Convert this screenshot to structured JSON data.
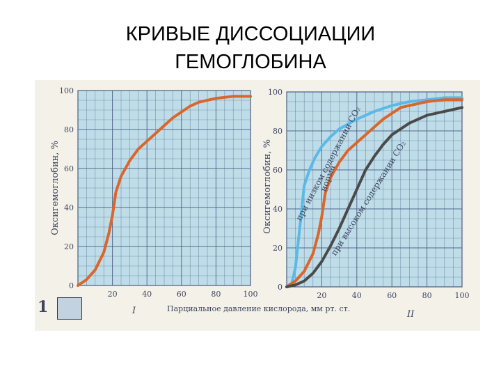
{
  "slide": {
    "title_line1": "КРИВЫЕ ДИССОЦИАЦИИ",
    "title_line2": "ГЕМОГЛОБИНА",
    "figure_number_fragment": "1"
  },
  "colors": {
    "background": "#ffffff",
    "scan_paper": "#f4f1e8",
    "grid_fill": "#bfdde9",
    "grid_line": "#4b5c80",
    "normal_curve": "#d9662b",
    "low_co2_curve": "#5ab9e6",
    "high_co2_curve": "#4a4a4a",
    "text": "#3c4560"
  },
  "chart_data": [
    {
      "type": "line",
      "panel_mark": "I",
      "ylabel": "Оксигемоглобин, %",
      "xlabel": "",
      "xlim": [
        0,
        100
      ],
      "ylim": [
        0,
        100
      ],
      "x_ticks": [
        "20",
        "40",
        "60",
        "80",
        "100"
      ],
      "y_ticks": [
        "0",
        "20",
        "40",
        "60",
        "80",
        "100"
      ],
      "grid": true,
      "series": [
        {
          "color": "#d9662b",
          "points": [
            [
              0,
              0
            ],
            [
              5,
              3
            ],
            [
              10,
              8
            ],
            [
              15,
              17
            ],
            [
              18,
              27
            ],
            [
              20,
              36
            ],
            [
              22,
              48
            ],
            [
              25,
              56
            ],
            [
              30,
              64
            ],
            [
              35,
              70
            ],
            [
              40,
              74
            ],
            [
              45,
              78
            ],
            [
              50,
              82
            ],
            [
              55,
              86
            ],
            [
              60,
              89
            ],
            [
              65,
              92
            ],
            [
              70,
              94
            ],
            [
              75,
              95
            ],
            [
              80,
              96
            ],
            [
              90,
              97
            ],
            [
              100,
              97
            ]
          ]
        }
      ]
    },
    {
      "type": "line",
      "panel_mark": "II",
      "ylabel": "Оксигемоглобин, %",
      "xlabel": "Парциальное давление кислорода, мм рт. ст.",
      "xlim": [
        0,
        100
      ],
      "ylim": [
        0,
        100
      ],
      "x_ticks": [
        "20",
        "40",
        "60",
        "80",
        "100"
      ],
      "y_ticks": [
        "0",
        "20",
        "40",
        "60",
        "80",
        "100"
      ],
      "grid": true,
      "curve_labels": {
        "low": "при низком содержании CO₂",
        "normal": "норма",
        "high": "при высоком содержании CO₂"
      },
      "series": [
        {
          "name": "при низком содержании CO₂",
          "color": "#5ab9e6",
          "points": [
            [
              0,
              0
            ],
            [
              3,
              2
            ],
            [
              5,
              10
            ],
            [
              8,
              35
            ],
            [
              10,
              52
            ],
            [
              13,
              60
            ],
            [
              16,
              66
            ],
            [
              20,
              72
            ],
            [
              25,
              77
            ],
            [
              30,
              81
            ],
            [
              40,
              86
            ],
            [
              50,
              90
            ],
            [
              60,
              93
            ],
            [
              70,
              95
            ],
            [
              80,
              96
            ],
            [
              90,
              97
            ],
            [
              100,
              97
            ]
          ]
        },
        {
          "name": "норма",
          "color": "#d9662b",
          "points": [
            [
              0,
              0
            ],
            [
              5,
              3
            ],
            [
              10,
              8
            ],
            [
              15,
              17
            ],
            [
              18,
              27
            ],
            [
              20,
              36
            ],
            [
              22,
              48
            ],
            [
              25,
              56
            ],
            [
              30,
              64
            ],
            [
              35,
              70
            ],
            [
              40,
              74
            ],
            [
              45,
              78
            ],
            [
              50,
              82
            ],
            [
              55,
              86
            ],
            [
              60,
              89
            ],
            [
              65,
              92
            ],
            [
              70,
              93
            ],
            [
              80,
              95
            ],
            [
              90,
              96
            ],
            [
              100,
              96
            ]
          ]
        },
        {
          "name": "при высоком содержании CO₂",
          "color": "#4a4a4a",
          "points": [
            [
              0,
              0
            ],
            [
              5,
              1
            ],
            [
              10,
              3
            ],
            [
              15,
              7
            ],
            [
              20,
              13
            ],
            [
              25,
              21
            ],
            [
              30,
              30
            ],
            [
              35,
              40
            ],
            [
              40,
              50
            ],
            [
              45,
              60
            ],
            [
              50,
              67
            ],
            [
              55,
              73
            ],
            [
              60,
              78
            ],
            [
              70,
              84
            ],
            [
              80,
              88
            ],
            [
              90,
              90
            ],
            [
              100,
              92
            ]
          ]
        }
      ]
    }
  ]
}
